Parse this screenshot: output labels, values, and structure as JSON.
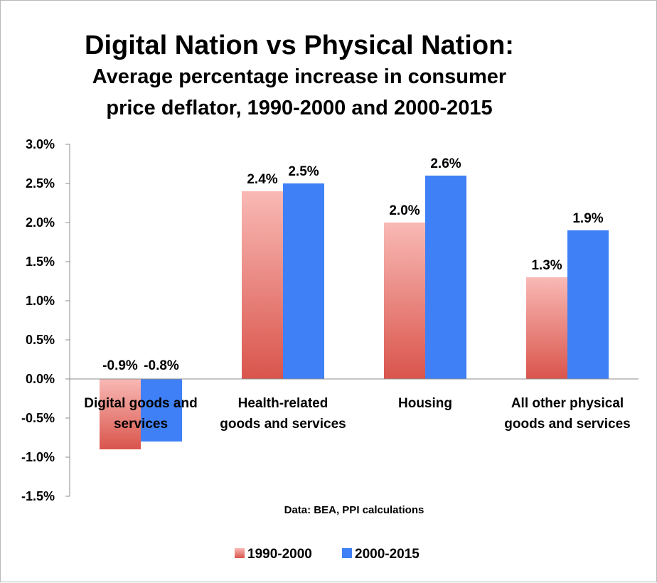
{
  "chart_data": {
    "type": "bar",
    "title": "Digital Nation vs Physical Nation:",
    "subtitle_lines": [
      "Average percentage increase in consumer",
      "price deflator, 1990-2000 and 2000-2015"
    ],
    "categories": [
      [
        "Digital goods and",
        "services"
      ],
      [
        "Health-related",
        "goods and services"
      ],
      [
        "Housing"
      ],
      [
        "All other physical",
        "goods and services"
      ]
    ],
    "series": [
      {
        "name": "1990-2000",
        "values": [
          -0.9,
          2.4,
          2.0,
          1.3
        ],
        "labels": [
          "-0.9%",
          "2.4%",
          "2.0%",
          "1.3%"
        ],
        "color_top": "#f9b9b5",
        "color_bottom": "#d9554c"
      },
      {
        "name": "2000-2015",
        "values": [
          -0.8,
          2.5,
          2.6,
          1.9
        ],
        "labels": [
          "-0.8%",
          "2.5%",
          "2.6%",
          "1.9%"
        ],
        "color": "#3f80f6"
      }
    ],
    "ylim": [
      -1.5,
      3.0
    ],
    "yticks": [
      3.0,
      2.5,
      2.0,
      1.5,
      1.0,
      0.5,
      0.0,
      -0.5,
      -1.0,
      -1.5
    ],
    "ytick_labels": [
      "3.0%",
      "2.5%",
      "2.0%",
      "1.5%",
      "1.0%",
      "0.5%",
      "0.0%",
      "-0.5%",
      "-1.0%",
      "-1.5%"
    ],
    "grid": false,
    "legend_position": "bottom-center",
    "source_note": "Data: BEA, PPI calculations"
  }
}
